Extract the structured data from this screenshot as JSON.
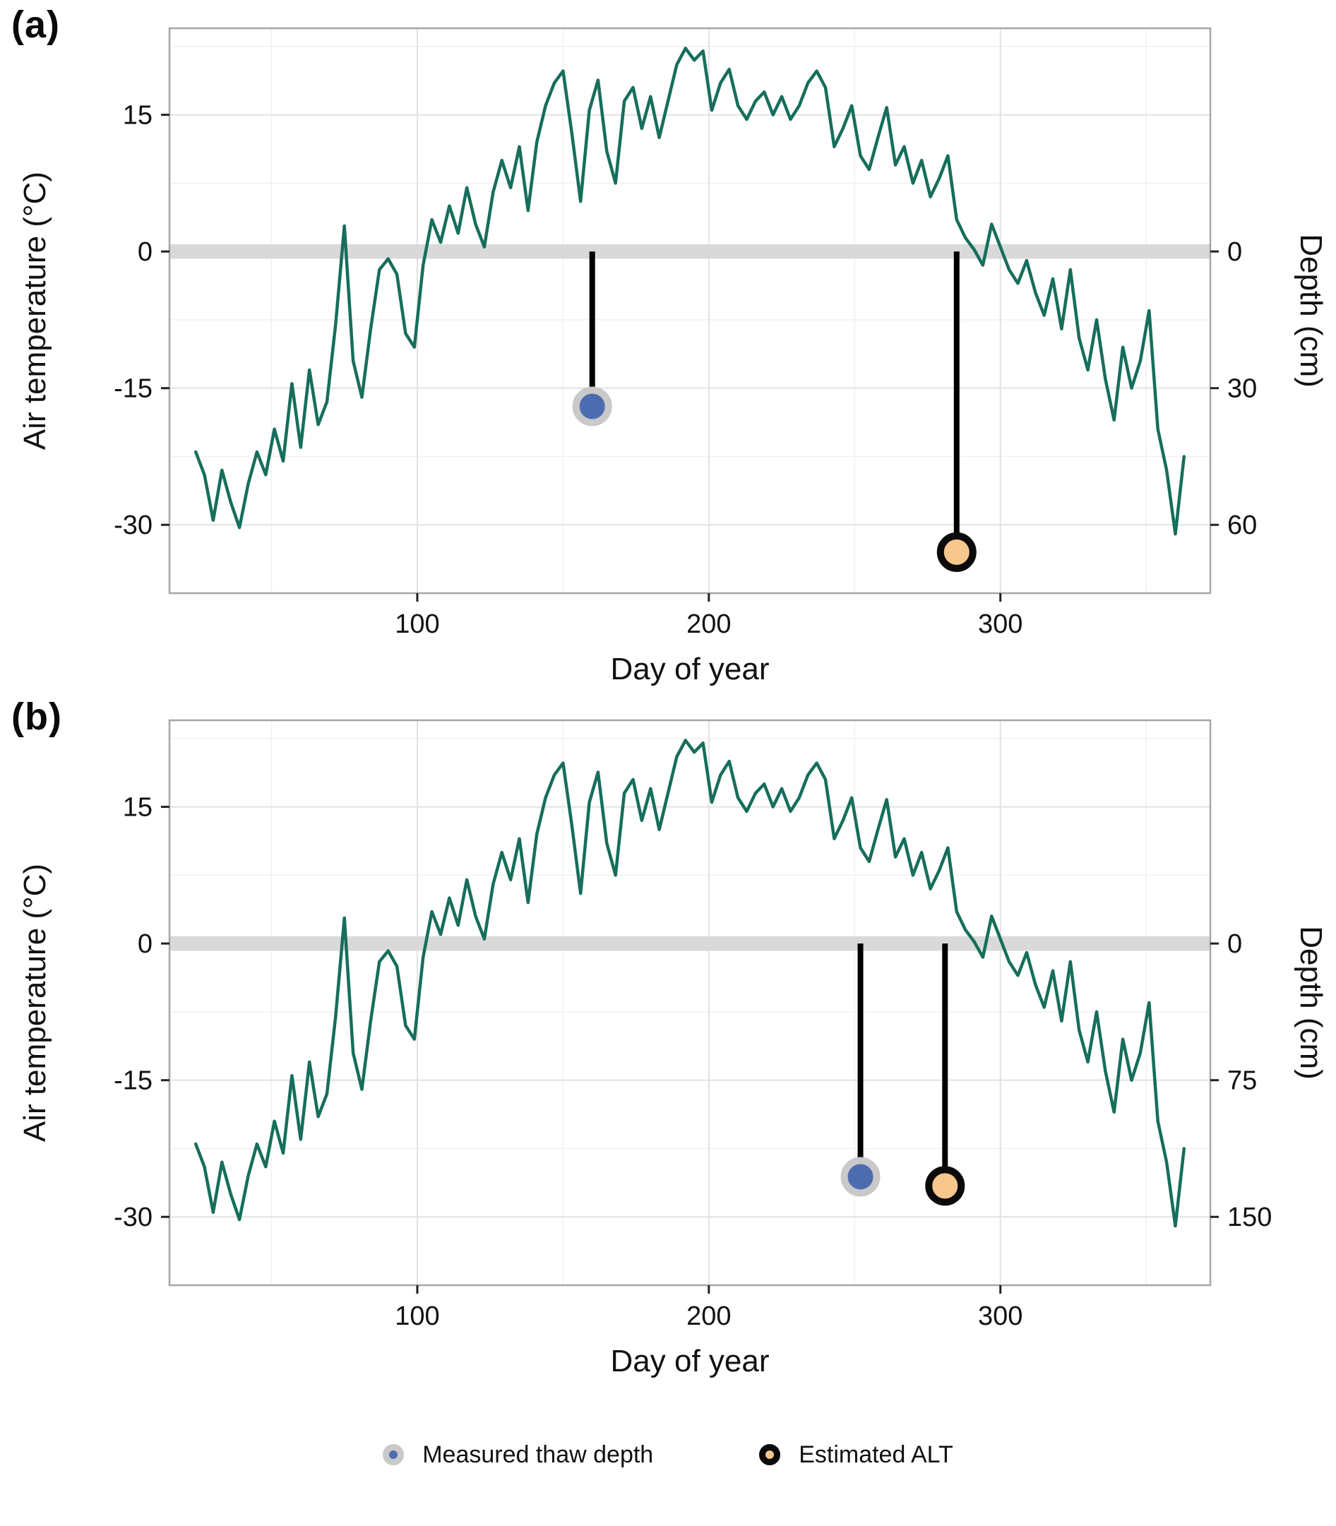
{
  "colors": {
    "line": "#166E5B",
    "band": "#d9d9d9",
    "grid_major": "#e2e2e2",
    "grid_minor": "#f0f0f0",
    "border": "#a6a6a6",
    "tick": "#222222",
    "text": "#111111",
    "stick": "#000000",
    "measured_fill": "#4d6cb0",
    "measured_ring": "#c9c9c9",
    "alt_fill": "#f8c78e",
    "alt_ring": "#0a0a0a"
  },
  "legend": {
    "items": [
      {
        "key": "measured",
        "label": "Measured thaw depth"
      },
      {
        "key": "alt",
        "label": "Estimated ALT"
      }
    ]
  },
  "chart_data": [
    {
      "panel_label": "(a)",
      "type": "line",
      "xlabel": "Day of year",
      "ylabel_left": "Air temperature (°C)",
      "ylabel_right": "Depth (cm)",
      "xlim": [
        15,
        372
      ],
      "ylim": [
        -37.5,
        24.5
      ],
      "x_ticks": [
        100,
        200,
        300
      ],
      "x_minor_ticks": [
        50,
        150,
        250,
        350
      ],
      "y_ticks": [
        15,
        0,
        -15,
        -30
      ],
      "y_minor_ticks": [
        22.5,
        7.5,
        -7.5,
        -22.5
      ],
      "right_axis_ticks": [
        {
          "label": "0",
          "at_temp": 0
        },
        {
          "label": "30",
          "at_temp": -15
        },
        {
          "label": "60",
          "at_temp": -30
        }
      ],
      "depth_cm_per_degC": 2,
      "zero_band_halfwidth_degC": 0.8,
      "series": {
        "name": "Daily air temperature",
        "x_start_day": 24,
        "x_step_days": 3,
        "temps_degC": [
          -22,
          -24.5,
          -29.5,
          -24,
          -27.5,
          -30.3,
          -25.5,
          -22,
          -24.5,
          -19.5,
          -23,
          -14.5,
          -21.5,
          -13,
          -19,
          -16.5,
          -8,
          2.8,
          -12,
          -16,
          -8.5,
          -2,
          -0.8,
          -2.5,
          -9,
          -10.5,
          -1.5,
          3.5,
          1,
          5,
          2,
          7,
          3,
          0.5,
          6.5,
          10,
          7,
          11.5,
          4.5,
          12,
          16,
          18.5,
          19.8,
          13,
          5.5,
          15.5,
          18.8,
          11,
          7.5,
          16.5,
          18,
          13.5,
          17,
          12.5,
          16.5,
          20.5,
          22.3,
          21,
          22,
          15.5,
          18.5,
          20,
          16,
          14.5,
          16.5,
          17.5,
          15,
          17,
          14.5,
          16,
          18.5,
          19.8,
          18,
          11.5,
          13.5,
          16,
          10.5,
          9,
          12.5,
          15.8,
          9.5,
          11.5,
          7.5,
          10,
          6,
          8,
          10.5,
          3.5,
          1.5,
          0.2,
          -1.5,
          3,
          0.5,
          -2,
          -3.5,
          -1,
          -4.5,
          -7,
          -3,
          -8.5,
          -2,
          -9.5,
          -13,
          -7.5,
          -14,
          -18.5,
          -10.5,
          -15,
          -12,
          -6.5,
          -19.5,
          -24,
          -31,
          -22.5
        ]
      },
      "markers": [
        {
          "type": "measured",
          "name": "Measured thaw depth",
          "day": 160,
          "depth_cm": 34
        },
        {
          "type": "alt",
          "name": "Estimated ALT",
          "day": 285,
          "depth_cm": 66
        }
      ]
    },
    {
      "panel_label": "(b)",
      "type": "line",
      "xlabel": "Day of year",
      "ylabel_left": "Air temperature (°C)",
      "ylabel_right": "Depth (cm)",
      "xlim": [
        15,
        372
      ],
      "ylim": [
        -37.5,
        24.5
      ],
      "x_ticks": [
        100,
        200,
        300
      ],
      "x_minor_ticks": [
        50,
        150,
        250,
        350
      ],
      "y_ticks": [
        15,
        0,
        -15,
        -30
      ],
      "y_minor_ticks": [
        22.5,
        7.5,
        -7.5,
        -22.5
      ],
      "right_axis_ticks": [
        {
          "label": "0",
          "at_temp": 0
        },
        {
          "label": "75",
          "at_temp": -15
        },
        {
          "label": "150",
          "at_temp": -30
        }
      ],
      "depth_cm_per_degC": 5,
      "zero_band_halfwidth_degC": 0.8,
      "series": {
        "name": "Daily air temperature",
        "x_start_day": 24,
        "x_step_days": 3,
        "temps_degC": [
          -22,
          -24.5,
          -29.5,
          -24,
          -27.5,
          -30.3,
          -25.5,
          -22,
          -24.5,
          -19.5,
          -23,
          -14.5,
          -21.5,
          -13,
          -19,
          -16.5,
          -8,
          2.8,
          -12,
          -16,
          -8.5,
          -2,
          -0.8,
          -2.5,
          -9,
          -10.5,
          -1.5,
          3.5,
          1,
          5,
          2,
          7,
          3,
          0.5,
          6.5,
          10,
          7,
          11.5,
          4.5,
          12,
          16,
          18.5,
          19.8,
          13,
          5.5,
          15.5,
          18.8,
          11,
          7.5,
          16.5,
          18,
          13.5,
          17,
          12.5,
          16.5,
          20.5,
          22.3,
          21,
          22,
          15.5,
          18.5,
          20,
          16,
          14.5,
          16.5,
          17.5,
          15,
          17,
          14.5,
          16,
          18.5,
          19.8,
          18,
          11.5,
          13.5,
          16,
          10.5,
          9,
          12.5,
          15.8,
          9.5,
          11.5,
          7.5,
          10,
          6,
          8,
          10.5,
          3.5,
          1.5,
          0.2,
          -1.5,
          3,
          0.5,
          -2,
          -3.5,
          -1,
          -4.5,
          -7,
          -3,
          -8.5,
          -2,
          -9.5,
          -13,
          -7.5,
          -14,
          -18.5,
          -10.5,
          -15,
          -12,
          -6.5,
          -19.5,
          -24,
          -31,
          -22.5
        ]
      },
      "markers": [
        {
          "type": "measured",
          "name": "Measured thaw depth",
          "day": 252,
          "depth_cm": 128
        },
        {
          "type": "alt",
          "name": "Estimated ALT",
          "day": 281,
          "depth_cm": 133
        }
      ]
    }
  ]
}
